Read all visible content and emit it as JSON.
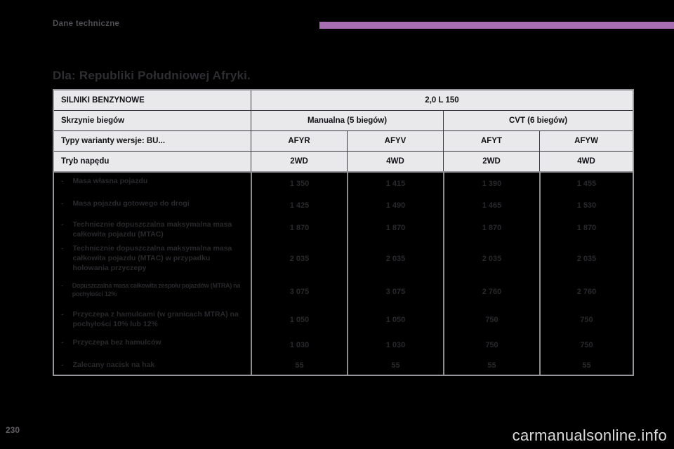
{
  "page": {
    "section_label": "Dane techniczne",
    "title": "Dla: Republiki Południowej Afryki.",
    "page_number": "230",
    "watermark": "carmanualsonline.info",
    "accent_color": "#a76fb2"
  },
  "table": {
    "header": {
      "engines_label": "SILNIKI BENZYNOWE",
      "engines_value": "2,0 L 150",
      "gearbox_label": "Skrzynie biegów",
      "gearbox_manual": "Manualna (5 biegów)",
      "gearbox_cvt": "CVT (6 biegów)",
      "types_label": "Typy warianty wersje: BU...",
      "types": [
        "AFYR",
        "AFYV",
        "AFYT",
        "AFYW"
      ],
      "drive_label": "Tryb napędu",
      "drive_modes": [
        "2WD",
        "4WD",
        "2WD",
        "4WD"
      ]
    },
    "rows": [
      {
        "label": "Masa własna pojazdu",
        "values": [
          "1 350",
          "1 415",
          "1 390",
          "1 455"
        ]
      },
      {
        "label": "Masa pojazdu gotowego do drogi",
        "values": [
          "1 425",
          "1 490",
          "1 465",
          "1 530"
        ]
      },
      {
        "label": "Technicznie dopuszczalna maksymalna masa całkowita pojazdu (MTAC)",
        "values": [
          "1 870",
          "1 870",
          "1 870",
          "1 870"
        ]
      },
      {
        "label": "Technicznie dopuszczalna maksymalna masa całkowita pojazdu (MTAC) w przypadku holowania przyczepy",
        "values": [
          "2 035",
          "2 035",
          "2 035",
          "2 035"
        ]
      },
      {
        "label": "Dopuszczalna masa całkowita zespołu pojazdów (MTRA) na pochyłości 12%",
        "values": [
          "3 075",
          "3 075",
          "2 760",
          "2 760"
        ]
      },
      {
        "label": "Przyczepa z hamulcami (w granicach MTRA) na pochyłości 10% lub 12%",
        "values": [
          "1 050",
          "1 050",
          "750",
          "750"
        ]
      },
      {
        "label": "Przyczepa bez hamulców",
        "values": [
          "1 030",
          "1 030",
          "750",
          "750"
        ]
      },
      {
        "label": "Zalecany nacisk na hak",
        "values": [
          "55",
          "55",
          "55",
          "55"
        ]
      }
    ]
  }
}
